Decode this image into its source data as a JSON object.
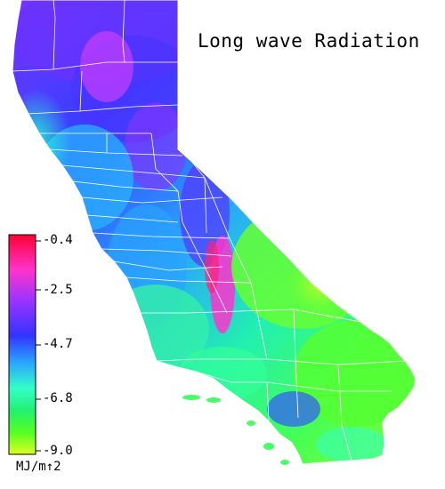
{
  "title": "Long wave Radiation",
  "legend": {
    "ticks": [
      "-0.4",
      "-2.5",
      "-4.7",
      "-6.8",
      "-9.0"
    ],
    "units": "MJ/m↑2",
    "colors": [
      "#ff0033",
      "#ff33cc",
      "#9a33ff",
      "#3333ff",
      "#2aa3ff",
      "#33ffc8",
      "#22f070",
      "#55ff22",
      "#ddff22"
    ]
  },
  "icons": {
    "map": "california-map-icon"
  }
}
